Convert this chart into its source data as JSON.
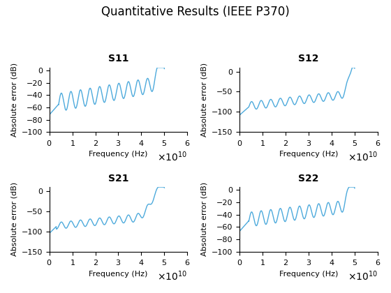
{
  "title": "Quantitative Results (IEEE P370)",
  "subplots": [
    {
      "title": "S11",
      "ylabel": "Absolute error (dB)",
      "xlabel": "Frequency (Hz)",
      "ylim": [
        -100,
        5
      ],
      "yticks": [
        0,
        -20,
        -40,
        -60,
        -80,
        -100
      ],
      "baseline_start": -55,
      "baseline_end": -20,
      "osc_amp_start": 15,
      "osc_amp_end": 12,
      "n_cycles": 12,
      "rise_start": 0.88,
      "init_drop": -72,
      "init_drop_end": 0.08
    },
    {
      "title": "S12",
      "ylabel": "Absolute error (dB)",
      "xlabel": "Frequency (Hz)",
      "ylim": [
        -150,
        10
      ],
      "yticks": [
        0,
        -50,
        -100,
        -150
      ],
      "baseline_start": -88,
      "baseline_end": -55,
      "osc_amp_start": 10,
      "osc_amp_end": 10,
      "n_cycles": 12,
      "rise_start": 0.88,
      "init_drop": -108,
      "init_drop_end": 0.08
    },
    {
      "title": "S21",
      "ylabel": "Absolute error (dB)",
      "xlabel": "Frequency (Hz)",
      "ylim": [
        -150,
        10
      ],
      "yticks": [
        0,
        -50,
        -100,
        -150
      ],
      "baseline_start": -88,
      "baseline_end": -60,
      "osc_amp_start": 8,
      "osc_amp_end": 10,
      "n_cycles": 12,
      "rise_start": 0.75,
      "init_drop": -105,
      "init_drop_end": 0.06
    },
    {
      "title": "S22",
      "ylabel": "Absolute error (dB)",
      "xlabel": "Frequency (Hz)",
      "ylim": [
        -100,
        5
      ],
      "yticks": [
        0,
        -20,
        -40,
        -60,
        -80,
        -100
      ],
      "baseline_start": -50,
      "baseline_end": -25,
      "osc_amp_start": 12,
      "osc_amp_end": 10,
      "n_cycles": 12,
      "rise_start": 0.88,
      "init_drop": -67,
      "init_drop_end": 0.08
    }
  ],
  "line_color": "#4DAADC",
  "xlim": [
    0,
    60000000000.0
  ],
  "xmax": 50000000000.0,
  "n_points": 3000,
  "background_color": "#ffffff",
  "title_fontsize": 12,
  "subplot_title_fontsize": 10,
  "axis_label_fontsize": 8,
  "tick_fontsize": 8
}
